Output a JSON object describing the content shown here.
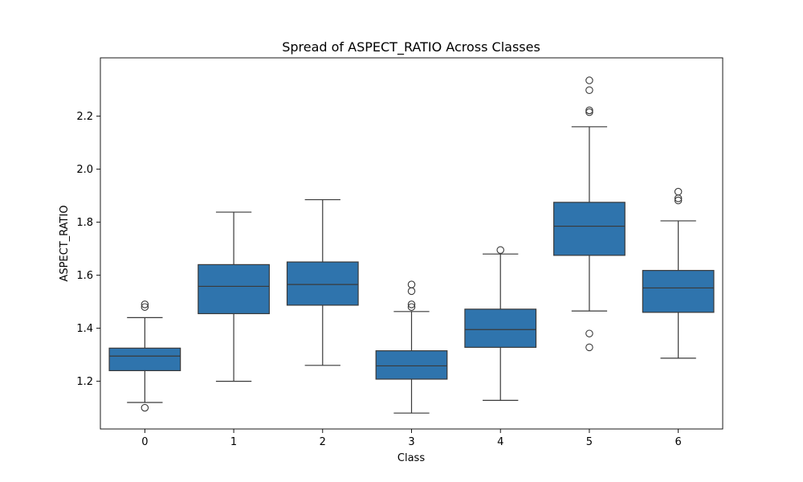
{
  "chart_data": {
    "type": "box",
    "title": "Spread of ASPECT_RATIO Across Classes",
    "xlabel": "Class",
    "ylabel": "ASPECT_RATIO",
    "ylim": [
      1.02,
      2.42
    ],
    "yticks": [
      1.2,
      1.4,
      1.6,
      1.8,
      2.0,
      2.2
    ],
    "ytick_labels": [
      "1.2",
      "1.4",
      "1.6",
      "1.8",
      "2.0",
      "2.2"
    ],
    "grid": false,
    "box_color": "#2f74ad",
    "line_color": "#3a3a3a",
    "categories": [
      "0",
      "1",
      "2",
      "3",
      "4",
      "5",
      "6"
    ],
    "boxes": [
      {
        "category": "0",
        "whisker_low": 1.12,
        "q1": 1.24,
        "median": 1.295,
        "q3": 1.325,
        "whisker_high": 1.44,
        "outliers": [
          1.49,
          1.48,
          1.1
        ]
      },
      {
        "category": "1",
        "whisker_low": 1.2,
        "q1": 1.455,
        "median": 1.558,
        "q3": 1.64,
        "whisker_high": 1.838,
        "outliers": []
      },
      {
        "category": "2",
        "whisker_low": 1.26,
        "q1": 1.487,
        "median": 1.565,
        "q3": 1.65,
        "whisker_high": 1.885,
        "outliers": []
      },
      {
        "category": "3",
        "whisker_low": 1.08,
        "q1": 1.208,
        "median": 1.258,
        "q3": 1.315,
        "whisker_high": 1.463,
        "outliers": [
          1.565,
          1.54,
          1.49,
          1.48
        ]
      },
      {
        "category": "4",
        "whisker_low": 1.128,
        "q1": 1.328,
        "median": 1.395,
        "q3": 1.472,
        "whisker_high": 1.68,
        "outliers": [
          1.695
        ]
      },
      {
        "category": "5",
        "whisker_low": 1.465,
        "q1": 1.675,
        "median": 1.785,
        "q3": 1.875,
        "whisker_high": 2.16,
        "outliers": [
          2.335,
          2.298,
          2.222,
          2.215,
          1.38,
          1.328
        ]
      },
      {
        "category": "6",
        "whisker_low": 1.287,
        "q1": 1.46,
        "median": 1.552,
        "q3": 1.618,
        "whisker_high": 1.805,
        "outliers": [
          1.915,
          1.89,
          1.882
        ]
      }
    ]
  }
}
